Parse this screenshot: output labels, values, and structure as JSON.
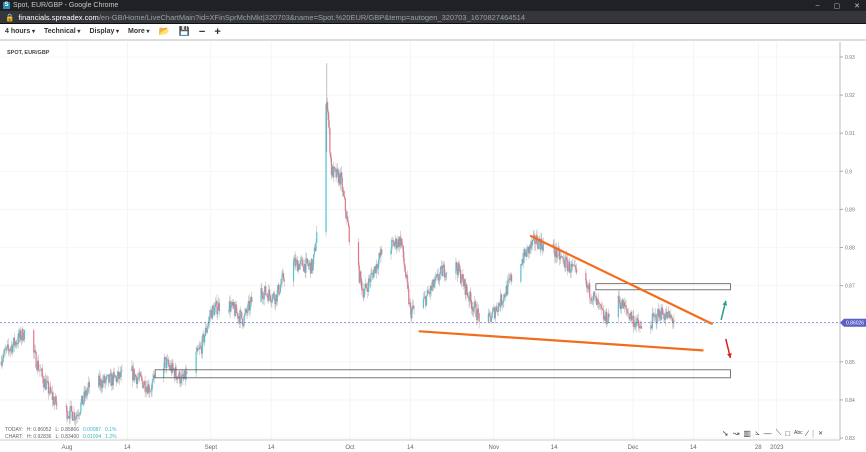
{
  "window": {
    "title": "Spot, EUR/GBP - Google Chrome",
    "favicon": "S",
    "minimize": "–",
    "maximize": "▢",
    "close": "✕"
  },
  "address": {
    "host": "financials.spreadex.com",
    "path": "/en-GB/Home/LiveChartMain?id=XFinSprMchMkt|320703&name=Spot.%20EUR/GBP&temp=autogen_320703_1670827464514"
  },
  "toolbar": {
    "timeframe": "4 hours",
    "technical": "Technical",
    "display": "Display",
    "more": "More",
    "icons": [
      "folder-open-icon",
      "save-icon",
      "zoom-out-icon",
      "zoom-in-icon"
    ]
  },
  "symbol": "SPOT, EUR/GBP",
  "stats": {
    "today": {
      "label": "TODAY:",
      "h": "H: 0.86052",
      "l": "L: 0.85866",
      "chg": "0.00087",
      "pct": "0.1%"
    },
    "chart": {
      "label": "CHART:",
      "h": "H: 0.92836",
      "l": "L: 0.83400",
      "chg": "0.01004",
      "pct": "1.2%"
    }
  },
  "drawing_tools": [
    "arrow-tool-icon",
    "curve-tool-icon",
    "fib-tool-icon",
    "fan-tool-icon",
    "horizontal-line-icon",
    "trend-line-icon",
    "rectangle-icon",
    "text-tool-icon",
    "line-icon",
    "divider",
    "close-icon"
  ],
  "colors": {
    "up": "#4fc3d0",
    "down": "#e57387",
    "wick": "#9a9a9a",
    "trendline": "#f26c1c",
    "arrow_up": "#2a9d8f",
    "arrow_down": "#d62020",
    "price_marker": "#5b5fc7"
  },
  "chart_data": {
    "type": "candlestick",
    "timeframe": "4 hours",
    "ylim": [
      0.83,
      0.93
    ],
    "y_ticks": [
      "0.93",
      "0.92",
      "0.91",
      "0.9",
      "0.89",
      "0.88",
      "0.87",
      "0.85",
      "0.84",
      "0.83"
    ],
    "x_ticks": [
      {
        "label": "Aug",
        "date": "2022-08-01"
      },
      {
        "label": "14",
        "date": "2022-08-14"
      },
      {
        "label": "Sept",
        "date": "2022-09-01"
      },
      {
        "label": "14",
        "date": "2022-09-14"
      },
      {
        "label": "Oct",
        "date": "2022-10-01"
      },
      {
        "label": "14",
        "date": "2022-10-14"
      },
      {
        "label": "Nov",
        "date": "2022-11-01"
      },
      {
        "label": "14",
        "date": "2022-11-14"
      },
      {
        "label": "Dec",
        "date": "2022-12-01"
      },
      {
        "label": "14",
        "date": "2022-12-14"
      },
      {
        "label": "28",
        "date": "2022-12-28"
      },
      {
        "label": "2023",
        "date": "2023-01-01"
      }
    ],
    "xlim": [
      "2022-07-17",
      "2023-01-08"
    ],
    "current_price": "0.86026",
    "close_path": [
      [
        "2022-07-17",
        0.85
      ],
      [
        "2022-07-23",
        0.858
      ],
      [
        "2022-07-27",
        0.845
      ],
      [
        "2022-07-30",
        0.838
      ],
      [
        "2022-08-03",
        0.836
      ],
      [
        "2022-08-06",
        0.844
      ],
      [
        "2022-08-10",
        0.845
      ],
      [
        "2022-08-15",
        0.847
      ],
      [
        "2022-08-19",
        0.843
      ],
      [
        "2022-08-22",
        0.85
      ],
      [
        "2022-08-26",
        0.845
      ],
      [
        "2022-08-30",
        0.854
      ],
      [
        "2022-09-01",
        0.863
      ],
      [
        "2022-09-04",
        0.866
      ],
      [
        "2022-09-08",
        0.861
      ],
      [
        "2022-09-11",
        0.869
      ],
      [
        "2022-09-15",
        0.867
      ],
      [
        "2022-09-18",
        0.876
      ],
      [
        "2022-09-23",
        0.875
      ],
      [
        "2022-09-25",
        0.896
      ],
      [
        "2022-09-26",
        0.92
      ],
      [
        "2022-09-27",
        0.9
      ],
      [
        "2022-09-29",
        0.898
      ],
      [
        "2022-10-01",
        0.882
      ],
      [
        "2022-10-04",
        0.868
      ],
      [
        "2022-10-08",
        0.879
      ],
      [
        "2022-10-12",
        0.882
      ],
      [
        "2022-10-14",
        0.863
      ],
      [
        "2022-10-17",
        0.866
      ],
      [
        "2022-10-21",
        0.874
      ],
      [
        "2022-10-24",
        0.875
      ],
      [
        "2022-10-27",
        0.866
      ],
      [
        "2022-10-30",
        0.859
      ],
      [
        "2022-11-03",
        0.867
      ],
      [
        "2022-11-06",
        0.875
      ],
      [
        "2022-11-10",
        0.882
      ],
      [
        "2022-11-14",
        0.879
      ],
      [
        "2022-11-18",
        0.874
      ],
      [
        "2022-11-22",
        0.868
      ],
      [
        "2022-11-25",
        0.861
      ],
      [
        "2022-11-28",
        0.866
      ],
      [
        "2022-12-03",
        0.858
      ],
      [
        "2022-12-07",
        0.863
      ],
      [
        "2022-12-11",
        0.86
      ]
    ],
    "annotations": {
      "trendlines": [
        {
          "from": [
            "2022-11-09",
            0.883
          ],
          "to": [
            "2022-12-18",
            0.86
          ]
        },
        {
          "from": [
            "2022-10-16",
            0.858
          ],
          "to": [
            "2022-12-16",
            0.853
          ]
        }
      ],
      "rectangles": [
        {
          "from": [
            "2022-11-23",
            0.8705
          ],
          "to": [
            "2022-12-22",
            0.8689
          ]
        },
        {
          "from": [
            "2022-08-20",
            0.8479
          ],
          "to": [
            "2022-12-22",
            0.8458
          ]
        }
      ],
      "arrows": [
        {
          "direction": "up",
          "from": [
            "2022-12-20",
            0.861
          ],
          "to": [
            "2022-12-21",
            0.866
          ]
        },
        {
          "direction": "down",
          "from": [
            "2022-12-21",
            0.856
          ],
          "to": [
            "2022-12-22",
            0.851
          ]
        }
      ]
    }
  }
}
